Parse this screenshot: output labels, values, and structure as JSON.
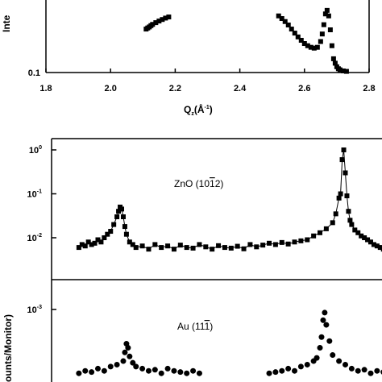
{
  "chart_data": [
    {
      "type": "scatter",
      "panel": "top",
      "xlabel": "Q",
      "xlabel_sub": "z",
      "xlabel_unit": "(Å",
      "xlabel_unit_sup": "-1",
      "xlabel_unit_close": ")",
      "ylabel_partial": "Inte",
      "xlim": [
        1.8,
        2.8
      ],
      "x_ticks": [
        "1.8",
        "2.0",
        "2.2",
        "2.4",
        "2.6",
        "2.8"
      ],
      "x_tick_values": [
        1.8,
        2.0,
        2.2,
        2.4,
        2.6,
        2.8
      ],
      "y_scale": "log",
      "y_ticks": [
        "0.1"
      ],
      "y_tick_values": [
        0.1
      ],
      "series": [
        {
          "marker": "filled-square",
          "x": [
            2.11,
            2.115,
            2.12,
            2.125,
            2.13,
            2.14,
            2.15,
            2.16,
            2.17,
            2.18,
            2.52,
            2.53,
            2.54,
            2.55,
            2.56,
            2.57,
            2.58,
            2.59,
            2.6,
            2.61,
            2.62,
            2.63,
            2.64,
            2.65,
            2.655,
            2.66,
            2.665,
            2.67,
            2.675,
            2.68,
            2.685,
            2.69,
            2.695,
            2.7,
            2.705,
            2.71,
            2.72,
            2.73
          ],
          "y": [
            0.62,
            0.65,
            0.68,
            0.72,
            0.76,
            0.82,
            0.88,
            0.94,
            1.0,
            1.05,
            1.1,
            0.98,
            0.86,
            0.74,
            0.62,
            0.52,
            0.44,
            0.38,
            0.33,
            0.3,
            0.28,
            0.27,
            0.28,
            0.36,
            0.5,
            0.75,
            1.2,
            1.4,
            1.1,
            0.6,
            0.3,
            0.17,
            0.14,
            0.12,
            0.11,
            0.105,
            0.1,
            0.098
          ]
        }
      ]
    },
    {
      "type": "scatter",
      "panel": "middle",
      "annotation": "ZnO (10",
      "annotation_over": "1",
      "annotation_tail": "2)",
      "y_scale": "log",
      "y_ticks": [
        {
          "base": "10",
          "exp": "0"
        },
        {
          "base": "10",
          "exp": "-1"
        },
        {
          "base": "10",
          "exp": "-2"
        }
      ],
      "y_tick_values": [
        1,
        0.1,
        0.01
      ],
      "xlim": [
        1.8,
        2.8
      ],
      "series": [
        {
          "marker": "filled-square",
          "connected_peaks": true,
          "x": [
            1.82,
            1.83,
            1.84,
            1.85,
            1.86,
            1.87,
            1.88,
            1.89,
            1.9,
            1.91,
            1.92,
            1.93,
            1.94,
            1.945,
            1.95,
            1.955,
            1.96,
            1.965,
            1.97,
            1.98,
            1.99,
            2.0,
            2.02,
            2.04,
            2.06,
            2.08,
            2.1,
            2.12,
            2.14,
            2.16,
            2.18,
            2.2,
            2.22,
            2.24,
            2.26,
            2.28,
            2.3,
            2.32,
            2.34,
            2.36,
            2.38,
            2.4,
            2.42,
            2.44,
            2.46,
            2.48,
            2.5,
            2.52,
            2.54,
            2.56,
            2.58,
            2.6,
            2.62,
            2.63,
            2.64,
            2.645,
            2.65,
            2.655,
            2.66,
            2.665,
            2.67,
            2.675,
            2.68,
            2.69,
            2.7,
            2.71,
            2.72,
            2.73,
            2.74,
            2.75,
            2.76,
            2.77,
            2.78
          ],
          "y": [
            0.006,
            0.007,
            0.0065,
            0.008,
            0.007,
            0.0075,
            0.009,
            0.008,
            0.01,
            0.012,
            0.014,
            0.02,
            0.03,
            0.04,
            0.05,
            0.045,
            0.03,
            0.018,
            0.012,
            0.008,
            0.007,
            0.006,
            0.0065,
            0.0055,
            0.007,
            0.006,
            0.0065,
            0.0055,
            0.0068,
            0.006,
            0.0058,
            0.007,
            0.0062,
            0.0055,
            0.0066,
            0.006,
            0.0058,
            0.0064,
            0.0056,
            0.007,
            0.0062,
            0.0068,
            0.0075,
            0.007,
            0.0078,
            0.0072,
            0.008,
            0.0085,
            0.009,
            0.011,
            0.013,
            0.016,
            0.022,
            0.035,
            0.08,
            0.1,
            0.6,
            1.0,
            0.3,
            0.09,
            0.04,
            0.025,
            0.02,
            0.015,
            0.013,
            0.011,
            0.01,
            0.009,
            0.008,
            0.007,
            0.0065,
            0.006,
            0.0055
          ]
        }
      ]
    },
    {
      "type": "scatter",
      "panel": "bottom",
      "annotation": "Au (11",
      "annotation_over": "1",
      "annotation_tail": ")",
      "ylabel_partial": "ounts/Monitor)",
      "y_scale": "log",
      "y_ticks": [
        {
          "base": "10",
          "exp": "-3"
        }
      ],
      "y_tick_values": [
        0.001
      ],
      "xlim": [
        1.8,
        2.8
      ],
      "series": [
        {
          "marker": "filled-circle",
          "x": [
            1.82,
            1.84,
            1.86,
            1.88,
            1.9,
            1.92,
            1.94,
            1.96,
            1.965,
            1.97,
            1.975,
            1.98,
            1.99,
            2.0,
            2.02,
            2.04,
            2.06,
            2.08,
            2.1,
            2.12,
            2.14,
            2.16,
            2.18,
            2.2,
            2.42,
            2.44,
            2.46,
            2.48,
            2.5,
            2.52,
            2.54,
            2.56,
            2.57,
            2.58,
            2.585,
            2.59,
            2.595,
            2.6,
            2.61,
            2.62,
            2.64,
            2.66,
            2.68,
            2.7,
            2.72,
            2.74,
            2.76,
            2.78
          ],
          "y": [
            0.00012,
            0.00013,
            0.000125,
            0.00014,
            0.00013,
            0.00015,
            0.00016,
            0.00018,
            0.00024,
            0.00032,
            0.00028,
            0.00021,
            0.00017,
            0.00015,
            0.00014,
            0.00013,
            0.000135,
            0.00012,
            0.00014,
            0.00013,
            0.000125,
            0.00012,
            0.00013,
            0.00012,
            0.00012,
            0.000125,
            0.00013,
            0.00014,
            0.00013,
            0.00015,
            0.00016,
            0.00018,
            0.0002,
            0.00028,
            0.0004,
            0.0007,
            0.0009,
            0.0006,
            0.00035,
            0.00022,
            0.00018,
            0.00016,
            0.00014,
            0.00013,
            0.000135,
            0.00012,
            0.00013,
            0.000125
          ]
        }
      ]
    }
  ]
}
